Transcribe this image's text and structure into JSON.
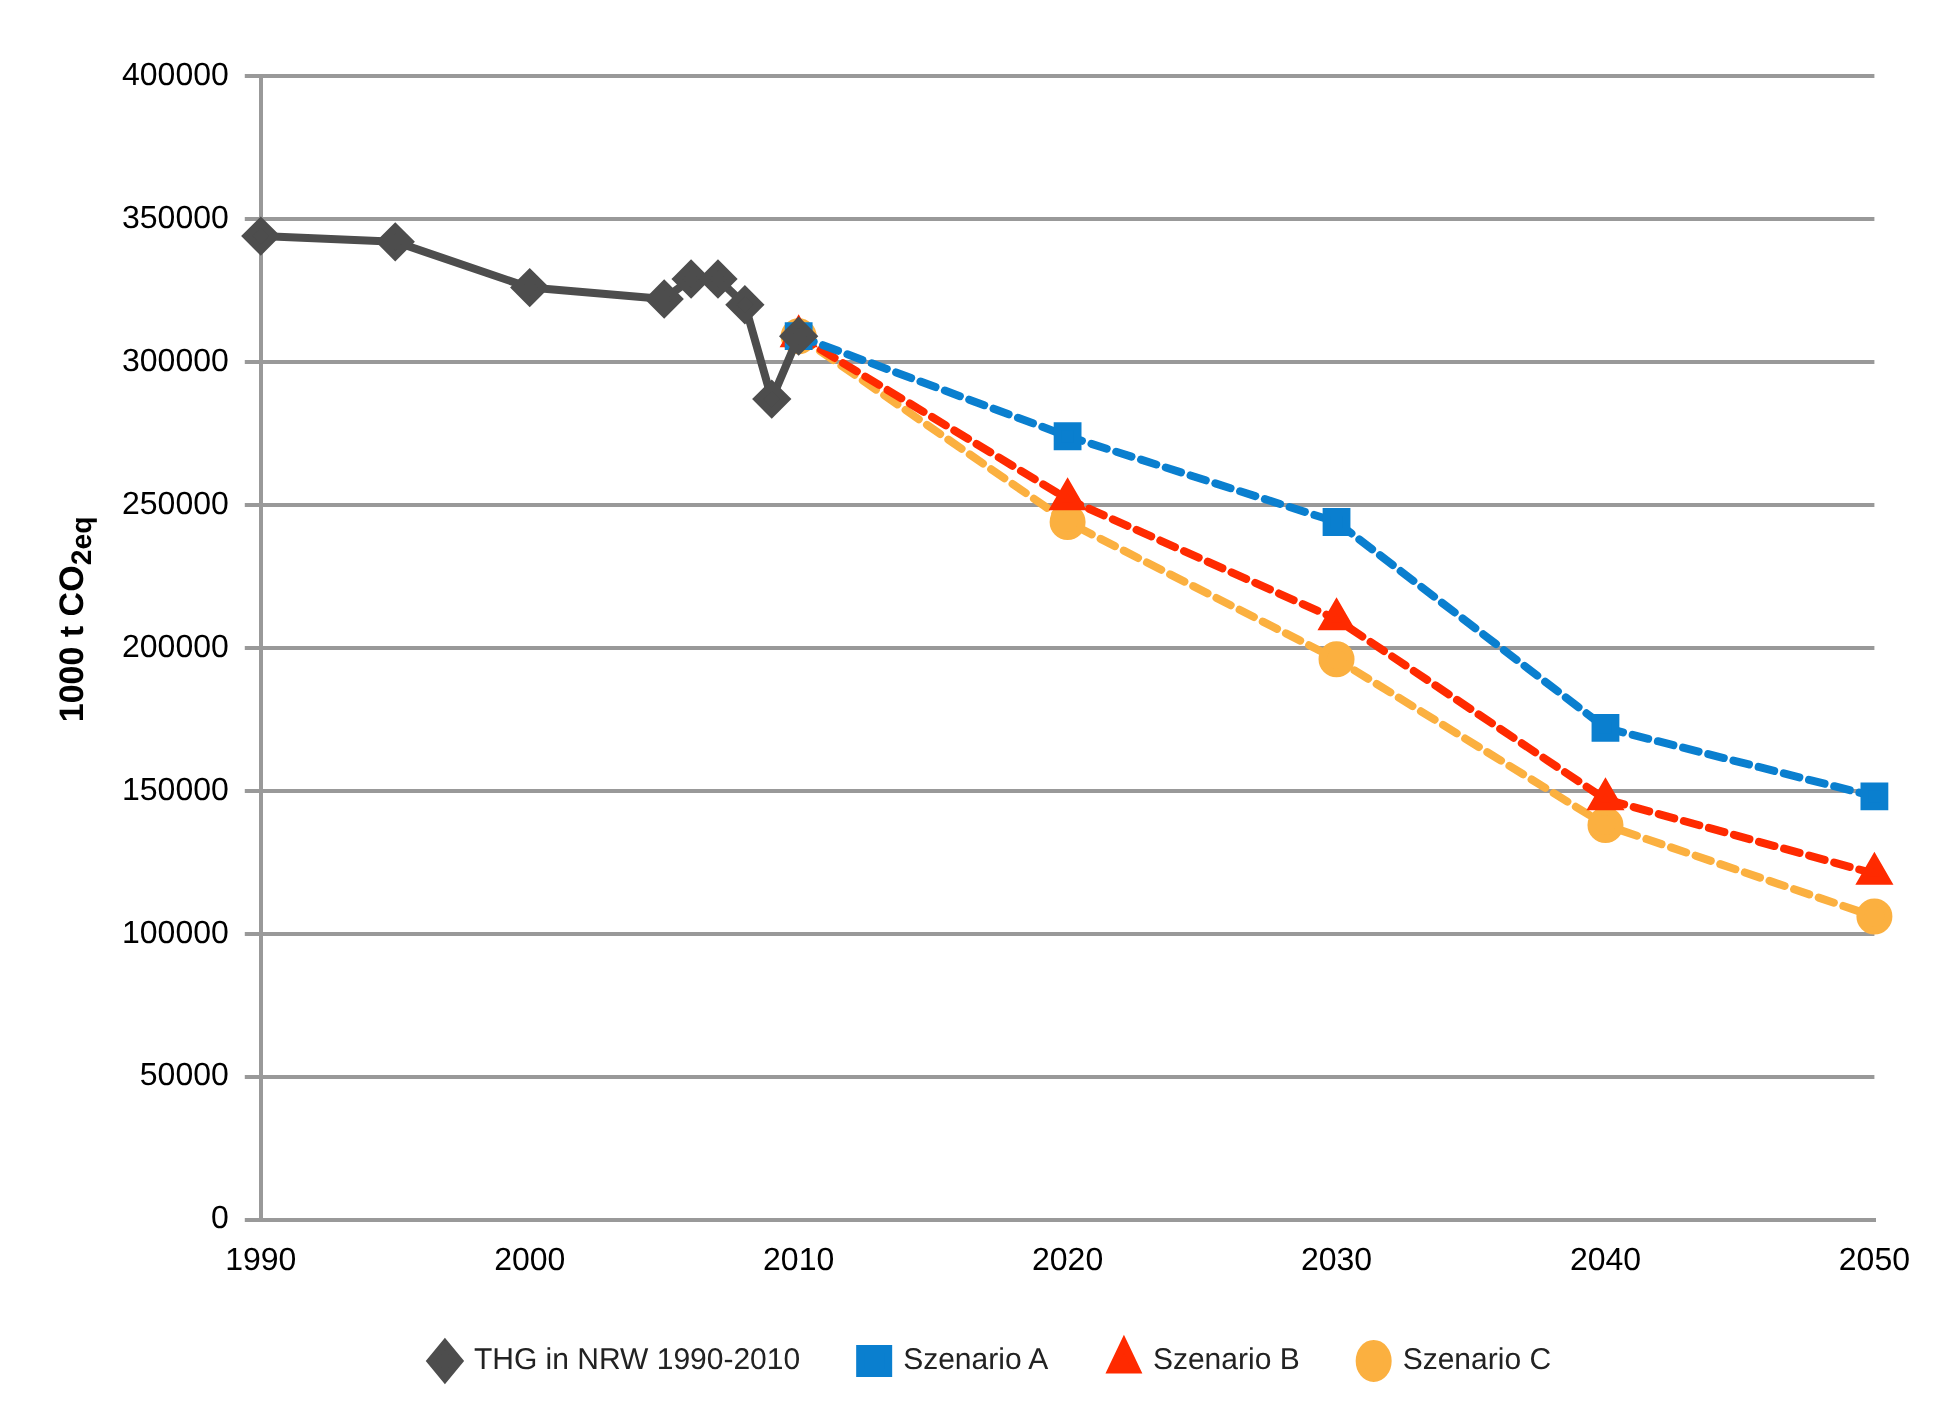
{
  "chart_data": {
    "type": "line",
    "ylabel": "1000 t CO$_{2eq}$",
    "xlim": [
      1990,
      2050
    ],
    "xticks": [
      1990,
      2000,
      2010,
      2020,
      2030,
      2040,
      2050
    ],
    "ylim": [
      0,
      400000
    ],
    "yticks": [
      0,
      50000,
      100000,
      150000,
      200000,
      250000,
      300000,
      350000,
      400000
    ],
    "grid": "y",
    "legend": "bottom",
    "series": [
      {
        "name": "THG in NRW 1990-2010",
        "color": "#4d4d4d",
        "marker": "diamond",
        "line_style": "solid",
        "x": [
          1990,
          1995,
          2000,
          2005,
          2006,
          2007,
          2008,
          2009,
          2010
        ],
        "values": [
          344000,
          342000,
          326000,
          322000,
          329000,
          329000,
          320000,
          287000,
          309000
        ]
      },
      {
        "name": "Szenario A",
        "color": "#0a7fcf",
        "marker": "square",
        "line_style": "dashed",
        "x": [
          2010,
          2020,
          2030,
          2040,
          2050
        ],
        "values": [
          309000,
          274000,
          244000,
          172000,
          148000
        ]
      },
      {
        "name": "Szenario B",
        "color": "#ff2a00",
        "marker": "triangle",
        "line_style": "dashed",
        "x": [
          2010,
          2020,
          2030,
          2040,
          2050
        ],
        "values": [
          309000,
          252000,
          210000,
          147000,
          121000
        ]
      },
      {
        "name": "Szenario C",
        "color": "#fbb040",
        "marker": "circle",
        "line_style": "dashed",
        "x": [
          2010,
          2020,
          2030,
          2040,
          2050
        ],
        "values": [
          309000,
          244000,
          196000,
          138000,
          106000
        ]
      }
    ]
  }
}
